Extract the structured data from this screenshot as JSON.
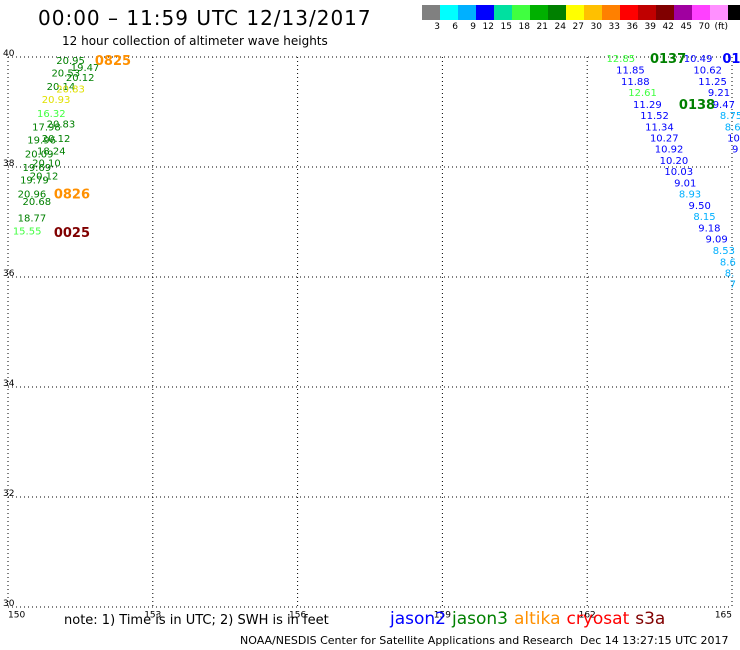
{
  "title": "00:00 – 11:59 UTC 12/13/2017",
  "subtitle": "12 hour collection of altimeter wave heights",
  "colorbar": {
    "colors": [
      "#808080",
      "#00ffff",
      "#00b0ff",
      "#0000ff",
      "#00e0a0",
      "#40ff40",
      "#00b000",
      "#008000",
      "#ffff00",
      "#ffc000",
      "#ff8000",
      "#ff0000",
      "#c00000",
      "#800000",
      "#a000a0",
      "#ff40ff",
      "#ff90ff",
      "#000000"
    ],
    "labels": [
      "3",
      "6",
      "9",
      "12",
      "15",
      "18",
      "21",
      "24",
      "27",
      "30",
      "33",
      "36",
      "39",
      "42",
      "45",
      "70",
      "(ft)"
    ]
  },
  "chart_data": {
    "type": "scatter",
    "xlim": [
      150,
      165
    ],
    "ylim": [
      30,
      40
    ],
    "x_ticks": [
      "150",
      "153",
      "156",
      "159",
      "162",
      "165"
    ],
    "y_ticks": [
      "30",
      "32",
      "34",
      "36",
      "38",
      "40"
    ],
    "grid": true,
    "points": [
      {
        "text": "20.95",
        "lon": 151.0,
        "lat": 39.95,
        "color": "#008000"
      },
      {
        "text": "19.47",
        "lon": 151.3,
        "lat": 39.82,
        "color": "#008000"
      },
      {
        "text": "20.53",
        "lon": 150.9,
        "lat": 39.72,
        "color": "#008000"
      },
      {
        "text": "20.12",
        "lon": 151.2,
        "lat": 39.64,
        "color": "#008000"
      },
      {
        "text": "20.14",
        "lon": 150.8,
        "lat": 39.47,
        "color": "#008000"
      },
      {
        "text": "20.83",
        "lon": 151.0,
        "lat": 39.43,
        "color": "#e0e000"
      },
      {
        "text": "20.93",
        "lon": 150.7,
        "lat": 39.24,
        "color": "#e0e000"
      },
      {
        "text": "16.32",
        "lon": 150.6,
        "lat": 38.98,
        "color": "#40ff40"
      },
      {
        "text": "20.83",
        "lon": 150.8,
        "lat": 38.79,
        "color": "#008000"
      },
      {
        "text": "17.98",
        "lon": 150.5,
        "lat": 38.74,
        "color": "#008000"
      },
      {
        "text": "20.12",
        "lon": 150.7,
        "lat": 38.53,
        "color": "#008000"
      },
      {
        "text": "19.96",
        "lon": 150.4,
        "lat": 38.5,
        "color": "#008000"
      },
      {
        "text": "18.24",
        "lon": 150.6,
        "lat": 38.3,
        "color": "#008000"
      },
      {
        "text": "20.09",
        "lon": 150.35,
        "lat": 38.25,
        "color": "#008000"
      },
      {
        "text": "20.10",
        "lon": 150.5,
        "lat": 38.08,
        "color": "#008000"
      },
      {
        "text": "19.69",
        "lon": 150.3,
        "lat": 38.0,
        "color": "#008000"
      },
      {
        "text": "20.12",
        "lon": 150.45,
        "lat": 37.85,
        "color": "#008000"
      },
      {
        "text": "19.79",
        "lon": 150.25,
        "lat": 37.77,
        "color": "#008000"
      },
      {
        "text": "20.96",
        "lon": 150.2,
        "lat": 37.52,
        "color": "#008000"
      },
      {
        "text": "20.68",
        "lon": 150.3,
        "lat": 37.38,
        "color": "#008000"
      },
      {
        "text": "18.77",
        "lon": 150.2,
        "lat": 37.08,
        "color": "#008000"
      },
      {
        "text": "15.55",
        "lon": 150.1,
        "lat": 36.85,
        "color": "#40ff40"
      },
      {
        "text": "12.85",
        "lon": 162.4,
        "lat": 39.98,
        "color": "#40ff40"
      },
      {
        "text": "11.85",
        "lon": 162.6,
        "lat": 39.77,
        "color": "#0000ff"
      },
      {
        "text": "11.88",
        "lon": 162.7,
        "lat": 39.56,
        "color": "#0000ff"
      },
      {
        "text": "12.61",
        "lon": 162.85,
        "lat": 39.36,
        "color": "#40ff40"
      },
      {
        "text": "11.29",
        "lon": 162.95,
        "lat": 39.15,
        "color": "#0000ff"
      },
      {
        "text": "11.52",
        "lon": 163.1,
        "lat": 38.95,
        "color": "#0000ff"
      },
      {
        "text": "11.34",
        "lon": 163.2,
        "lat": 38.74,
        "color": "#0000ff"
      },
      {
        "text": "10.27",
        "lon": 163.3,
        "lat": 38.54,
        "color": "#0000ff"
      },
      {
        "text": "10.92",
        "lon": 163.4,
        "lat": 38.34,
        "color": "#0000ff"
      },
      {
        "text": "10.20",
        "lon": 163.5,
        "lat": 38.13,
        "color": "#0000ff"
      },
      {
        "text": "10.03",
        "lon": 163.6,
        "lat": 37.93,
        "color": "#0000ff"
      },
      {
        "text": "9.01",
        "lon": 163.8,
        "lat": 37.72,
        "color": "#0000ff"
      },
      {
        "text": "8.93",
        "lon": 163.9,
        "lat": 37.52,
        "color": "#00b0ff"
      },
      {
        "text": "9.50",
        "lon": 164.1,
        "lat": 37.31,
        "color": "#0000ff"
      },
      {
        "text": "8.15",
        "lon": 164.2,
        "lat": 37.11,
        "color": "#00b0ff"
      },
      {
        "text": "9.18",
        "lon": 164.3,
        "lat": 36.9,
        "color": "#0000ff"
      },
      {
        "text": "9.09",
        "lon": 164.45,
        "lat": 36.7,
        "color": "#0000ff"
      },
      {
        "text": "8.53",
        "lon": 164.6,
        "lat": 36.49,
        "color": "#00b0ff"
      },
      {
        "text": "8.6",
        "lon": 164.75,
        "lat": 36.28,
        "color": "#00b0ff"
      },
      {
        "text": "8.",
        "lon": 164.85,
        "lat": 36.08,
        "color": "#00b0ff"
      },
      {
        "text": "7",
        "lon": 164.95,
        "lat": 35.88,
        "color": "#00b0ff"
      },
      {
        "text": "10.49",
        "lon": 164.0,
        "lat": 39.98,
        "color": "#0000ff"
      },
      {
        "text": "10.62",
        "lon": 164.2,
        "lat": 39.77,
        "color": "#0000ff"
      },
      {
        "text": "11.25",
        "lon": 164.3,
        "lat": 39.56,
        "color": "#0000ff"
      },
      {
        "text": "9.21",
        "lon": 164.5,
        "lat": 39.36,
        "color": "#0000ff"
      },
      {
        "text": "9.47",
        "lon": 164.6,
        "lat": 39.15,
        "color": "#0000ff"
      },
      {
        "text": "8.75",
        "lon": 164.75,
        "lat": 38.95,
        "color": "#00b0ff"
      },
      {
        "text": "8.6",
        "lon": 164.85,
        "lat": 38.74,
        "color": "#00b0ff"
      },
      {
        "text": "10.",
        "lon": 164.9,
        "lat": 38.54,
        "color": "#0000ff"
      },
      {
        "text": "9",
        "lon": 165.0,
        "lat": 38.34,
        "color": "#0000ff"
      }
    ],
    "passes": [
      {
        "text": "0825",
        "lon": 151.8,
        "lat": 39.95,
        "color": "#ff9000"
      },
      {
        "text": "0826",
        "lon": 150.95,
        "lat": 37.52,
        "color": "#ff9000"
      },
      {
        "text": "0025",
        "lon": 150.95,
        "lat": 36.82,
        "color": "#800000"
      },
      {
        "text": "0137",
        "lon": 163.3,
        "lat": 39.98,
        "color": "#008000"
      },
      {
        "text": "0138",
        "lon": 163.9,
        "lat": 39.15,
        "color": "#008000"
      },
      {
        "text": "01",
        "lon": 164.8,
        "lat": 39.98,
        "color": "#0000ff"
      }
    ]
  },
  "note": "note: 1) Time is in UTC; 2) SWH is in feet",
  "legend": [
    {
      "label": "jason2",
      "color": "#0000ff"
    },
    {
      "label": "jason3",
      "color": "#008000"
    },
    {
      "label": "altika",
      "color": "#ff9000"
    },
    {
      "label": "cryosat",
      "color": "#ff0000"
    },
    {
      "label": "s3a",
      "color": "#800000"
    }
  ],
  "footer": "NOAA/NESDIS Center for Satellite Applications and Research",
  "footer_date": "Dec 14 13:27:15 UTC 2017"
}
